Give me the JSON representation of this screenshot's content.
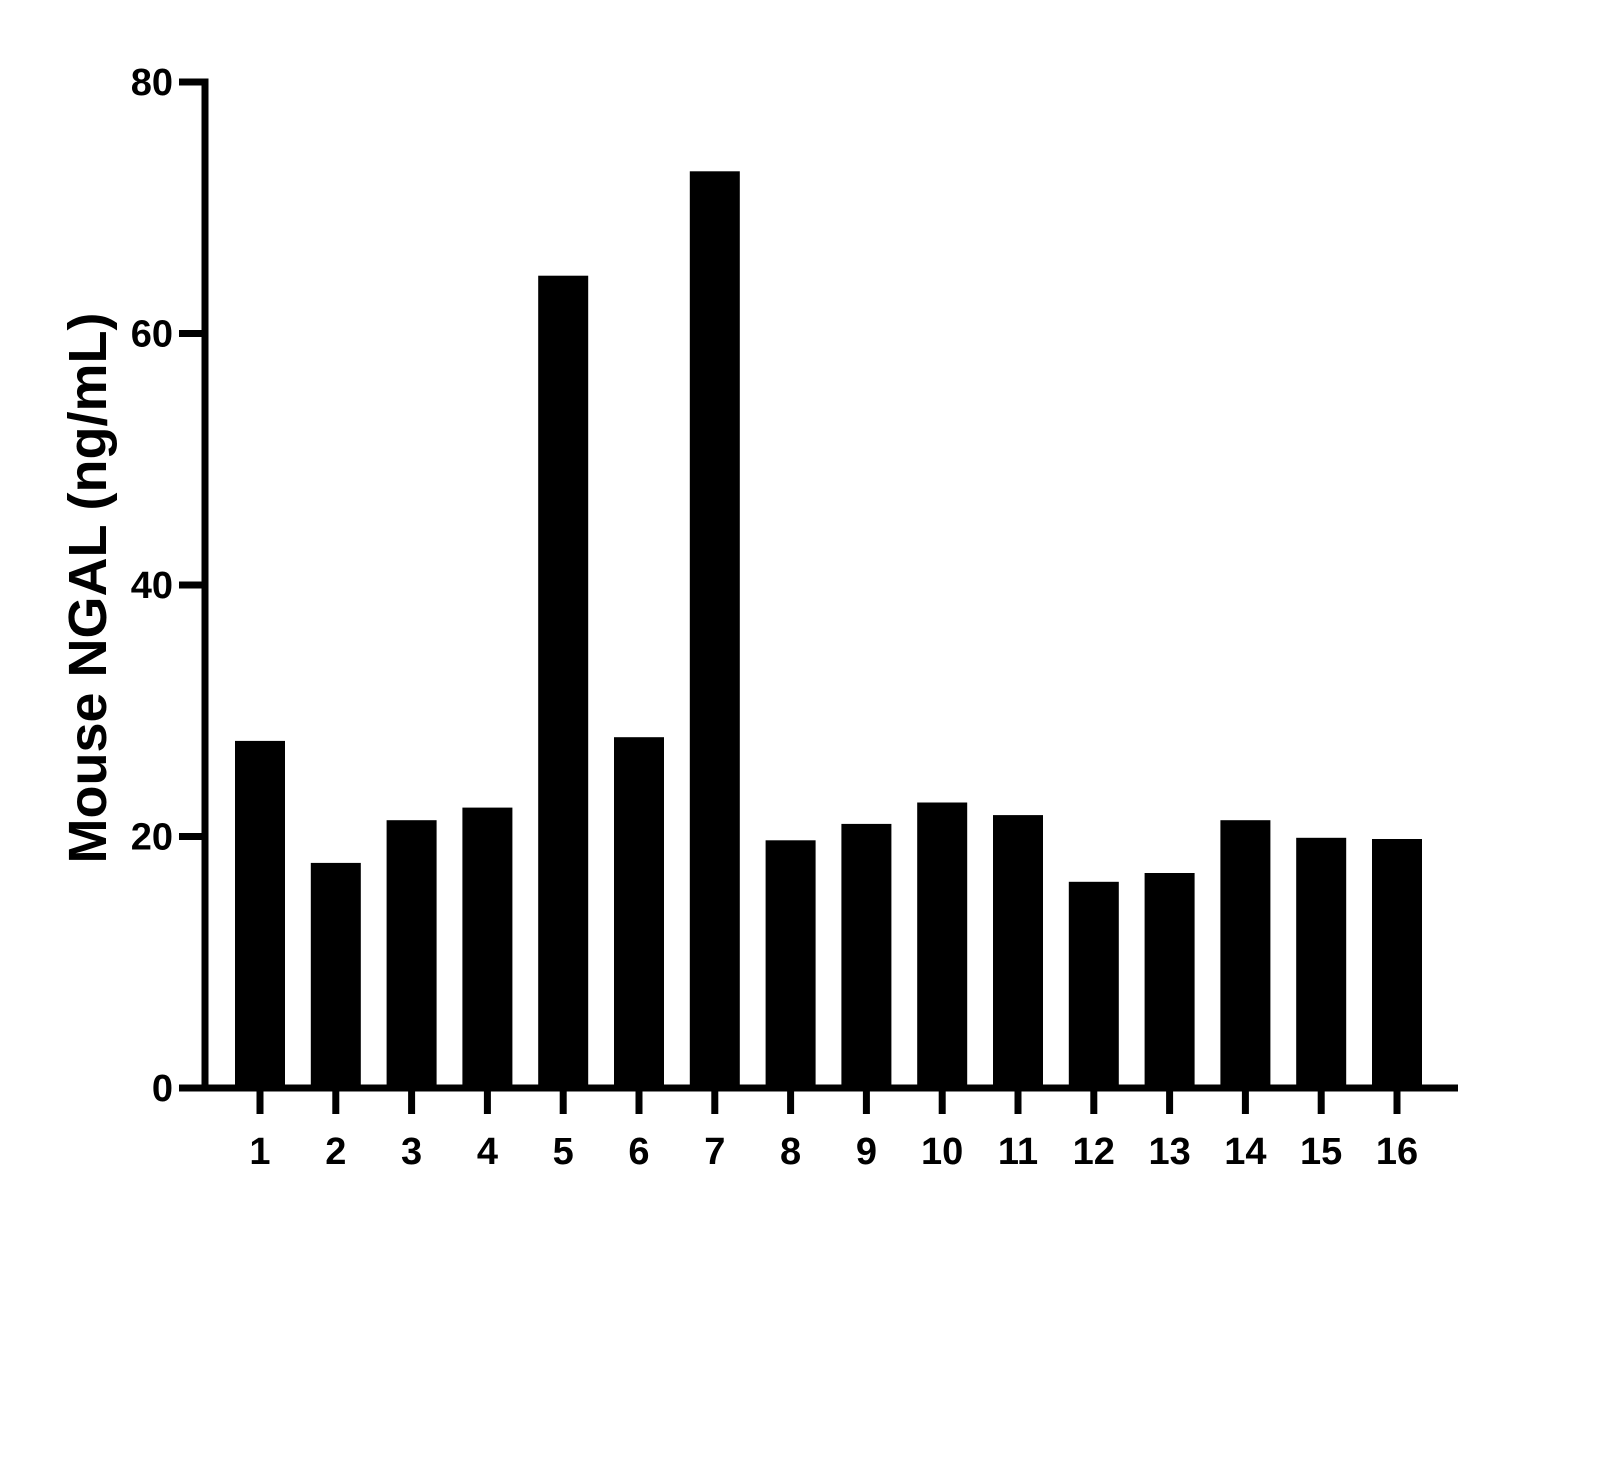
{
  "chart_data": {
    "type": "bar",
    "categories": [
      "1",
      "2",
      "3",
      "4",
      "5",
      "6",
      "7",
      "8",
      "9",
      "10",
      "11",
      "12",
      "13",
      "14",
      "15",
      "16"
    ],
    "values": [
      27.6,
      17.9,
      21.3,
      22.3,
      64.6,
      27.9,
      72.9,
      19.7,
      21.0,
      22.7,
      21.7,
      16.4,
      17.1,
      21.3,
      19.9,
      19.8
    ],
    "title": "",
    "xlabel": "",
    "ylabel": "Mouse NGAL (ng/mL)",
    "ylim": [
      0,
      80
    ],
    "yticks": [
      0,
      20,
      40,
      60,
      80
    ],
    "grid": false,
    "legend": "none",
    "bar_color": "#000000",
    "axis_color": "#000000"
  }
}
